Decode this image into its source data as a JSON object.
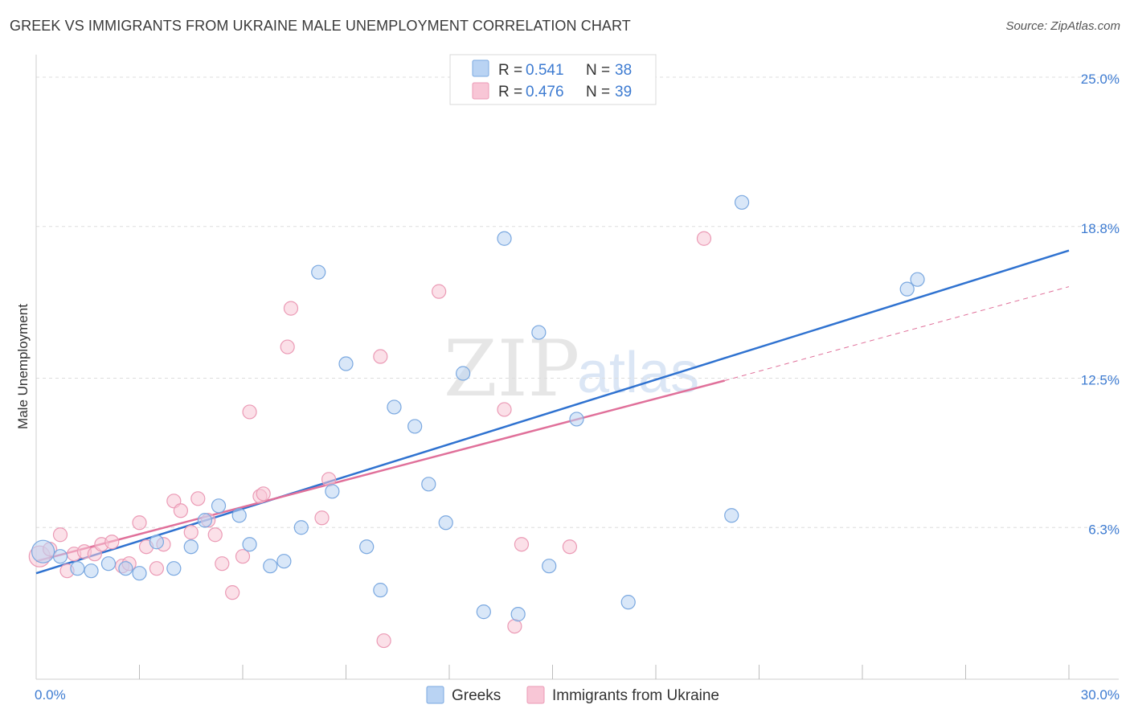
{
  "header": {
    "title": "GREEK VS IMMIGRANTS FROM UKRAINE MALE UNEMPLOYMENT CORRELATION CHART",
    "source": "Source: ZipAtlas.com"
  },
  "watermark": {
    "zip": "ZIP",
    "atlas": "atlas"
  },
  "legend_box": {
    "rows": [
      {
        "r_label": "R =",
        "r_value": "0.541",
        "n_label": "N =",
        "n_value": "38"
      },
      {
        "r_label": "R =",
        "r_value": "0.476",
        "n_label": "N =",
        "n_value": "39"
      }
    ]
  },
  "bottom_legend": {
    "series_a": "Greeks",
    "series_b": "Immigrants from Ukraine"
  },
  "colors": {
    "blue_fill": "#b9d3f3",
    "blue_stroke": "#7aa8e0",
    "blue_line": "#2f72d0",
    "pink_fill": "#f8c6d6",
    "pink_stroke": "#eb9ab5",
    "pink_line": "#e0709a",
    "grid": "#dddddd",
    "axis_label": "#3d7bd1"
  },
  "chart_data": {
    "type": "scatter",
    "title": "GREEK VS IMMIGRANTS FROM UKRAINE MALE UNEMPLOYMENT CORRELATION CHART",
    "xlabel": "",
    "ylabel": "Male Unemployment",
    "xlim": [
      0,
      30
    ],
    "ylim": [
      0,
      25.0
    ],
    "x_tick_labels": [
      {
        "value": 0,
        "label": "0.0%"
      },
      {
        "value": 30,
        "label": "30.0%"
      }
    ],
    "y_tick_labels": [
      {
        "value": 6.3,
        "label": "6.3%"
      },
      {
        "value": 12.5,
        "label": "12.5%"
      },
      {
        "value": 18.8,
        "label": "18.8%"
      },
      {
        "value": 25.0,
        "label": "25.0%"
      }
    ],
    "series": [
      {
        "name": "Greeks",
        "r": 0.541,
        "n": 38,
        "trend": {
          "x0": 0.0,
          "y0": 4.4,
          "x1": 30.0,
          "y1": 17.8,
          "dashed_extension": false
        },
        "points": [
          [
            0.2,
            5.3
          ],
          [
            0.7,
            5.1
          ],
          [
            1.2,
            4.6
          ],
          [
            1.6,
            4.5
          ],
          [
            2.1,
            4.8
          ],
          [
            2.6,
            4.6
          ],
          [
            3.0,
            4.4
          ],
          [
            3.5,
            5.7
          ],
          [
            4.0,
            4.6
          ],
          [
            4.5,
            5.5
          ],
          [
            4.9,
            6.6
          ],
          [
            5.3,
            7.2
          ],
          [
            5.9,
            6.8
          ],
          [
            6.2,
            5.6
          ],
          [
            6.8,
            4.7
          ],
          [
            7.2,
            4.9
          ],
          [
            7.7,
            6.3
          ],
          [
            8.2,
            16.9
          ],
          [
            8.6,
            7.8
          ],
          [
            9.0,
            13.1
          ],
          [
            9.6,
            5.5
          ],
          [
            10.0,
            3.7
          ],
          [
            10.4,
            11.3
          ],
          [
            11.0,
            10.5
          ],
          [
            11.4,
            8.1
          ],
          [
            11.9,
            6.5
          ],
          [
            12.4,
            12.7
          ],
          [
            13.0,
            2.8
          ],
          [
            13.6,
            18.3
          ],
          [
            14.0,
            2.7
          ],
          [
            14.6,
            14.4
          ],
          [
            14.9,
            4.7
          ],
          [
            15.7,
            10.8
          ],
          [
            17.2,
            3.2
          ],
          [
            20.2,
            6.8
          ],
          [
            20.5,
            19.8
          ],
          [
            25.3,
            16.2
          ],
          [
            25.6,
            16.6
          ]
        ]
      },
      {
        "name": "Immigrants from Ukraine",
        "r": 0.476,
        "n": 39,
        "trend": {
          "x0": 0.0,
          "y0": 4.9,
          "x1": 20.0,
          "y1": 12.4,
          "dash_x1": 30.0,
          "dash_y1": 16.3,
          "dashed_extension": true
        },
        "points": [
          [
            0.1,
            5.1
          ],
          [
            0.4,
            5.4
          ],
          [
            0.7,
            6.0
          ],
          [
            0.9,
            4.5
          ],
          [
            1.1,
            5.2
          ],
          [
            1.4,
            5.3
          ],
          [
            1.7,
            5.2
          ],
          [
            1.9,
            5.6
          ],
          [
            2.2,
            5.7
          ],
          [
            2.5,
            4.7
          ],
          [
            2.7,
            4.8
          ],
          [
            3.0,
            6.5
          ],
          [
            3.2,
            5.5
          ],
          [
            3.5,
            4.6
          ],
          [
            3.7,
            5.6
          ],
          [
            4.0,
            7.4
          ],
          [
            4.2,
            7.0
          ],
          [
            4.5,
            6.1
          ],
          [
            4.7,
            7.5
          ],
          [
            5.0,
            6.6
          ],
          [
            5.2,
            6.0
          ],
          [
            5.4,
            4.8
          ],
          [
            5.7,
            3.6
          ],
          [
            6.0,
            5.1
          ],
          [
            6.2,
            11.1
          ],
          [
            6.5,
            7.6
          ],
          [
            6.6,
            7.7
          ],
          [
            7.3,
            13.8
          ],
          [
            7.4,
            15.4
          ],
          [
            8.3,
            6.7
          ],
          [
            8.5,
            8.3
          ],
          [
            10.0,
            13.4
          ],
          [
            10.1,
            1.6
          ],
          [
            11.7,
            16.1
          ],
          [
            13.6,
            11.2
          ],
          [
            13.9,
            2.2
          ],
          [
            14.1,
            5.6
          ],
          [
            15.5,
            5.5
          ],
          [
            19.4,
            18.3
          ]
        ]
      }
    ]
  }
}
